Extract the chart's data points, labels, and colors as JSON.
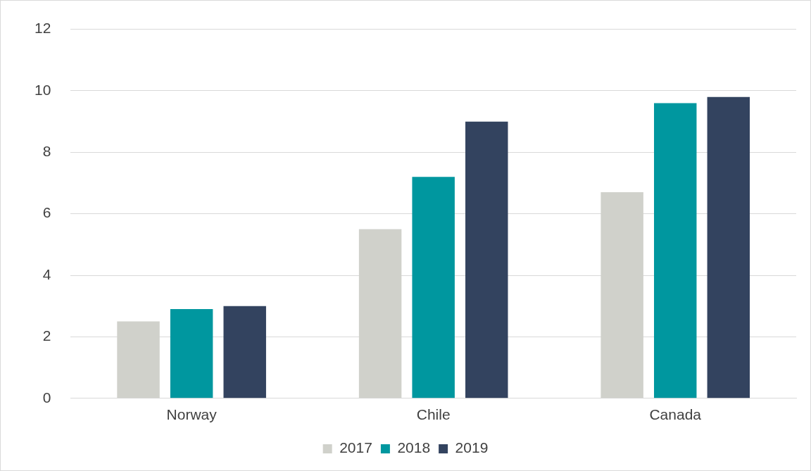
{
  "chart_data": {
    "type": "bar",
    "categories": [
      "Norway",
      "Chile",
      "Canada"
    ],
    "series": [
      {
        "name": "2017",
        "color": "#d0d1cb",
        "values": [
          2.5,
          5.5,
          6.7
        ]
      },
      {
        "name": "2018",
        "color": "#00979f",
        "values": [
          2.9,
          7.2,
          9.6
        ]
      },
      {
        "name": "2019",
        "color": "#33435f",
        "values": [
          3.0,
          9.0,
          9.8
        ]
      }
    ],
    "ylim": [
      0,
      12
    ],
    "yticks": [
      0,
      2,
      4,
      6,
      8,
      10,
      12
    ],
    "grid": "y",
    "legend": "bottom"
  }
}
